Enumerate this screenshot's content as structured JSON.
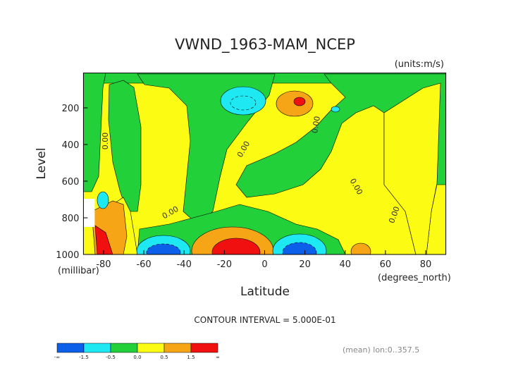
{
  "chart_data": {
    "type": "contour",
    "title": "VWND_1963-MAM_NCEP",
    "units": "(units:m/s)",
    "x_label": "Latitude",
    "x_units": "(degrees_north)",
    "y_label": "Level",
    "y_units": "(millibar)",
    "xlim": [
      -90,
      90
    ],
    "xticks": [
      -80,
      -60,
      -40,
      -20,
      0,
      20,
      40,
      60,
      80
    ],
    "ylim": [
      1000,
      10
    ],
    "yticks": [
      200,
      400,
      600,
      800,
      1000
    ],
    "contour_labels": [
      "0.00",
      "0.00",
      "0.00",
      "0.00",
      "0.00",
      "0.00"
    ],
    "contour_interval": "CONTOUR INTERVAL = 5.000E-01",
    "footnote": "(mean) lon:0..357.5",
    "colorbar": {
      "colors": [
        "#0b5fe8",
        "#1ee8f2",
        "#22d03a",
        "#fbfb14",
        "#f5a515",
        "#f01010"
      ],
      "tick_labels": [
        "-∞",
        "-1.5",
        "-0.5",
        "0.0",
        "0.5",
        "1.5",
        "∞"
      ]
    }
  }
}
